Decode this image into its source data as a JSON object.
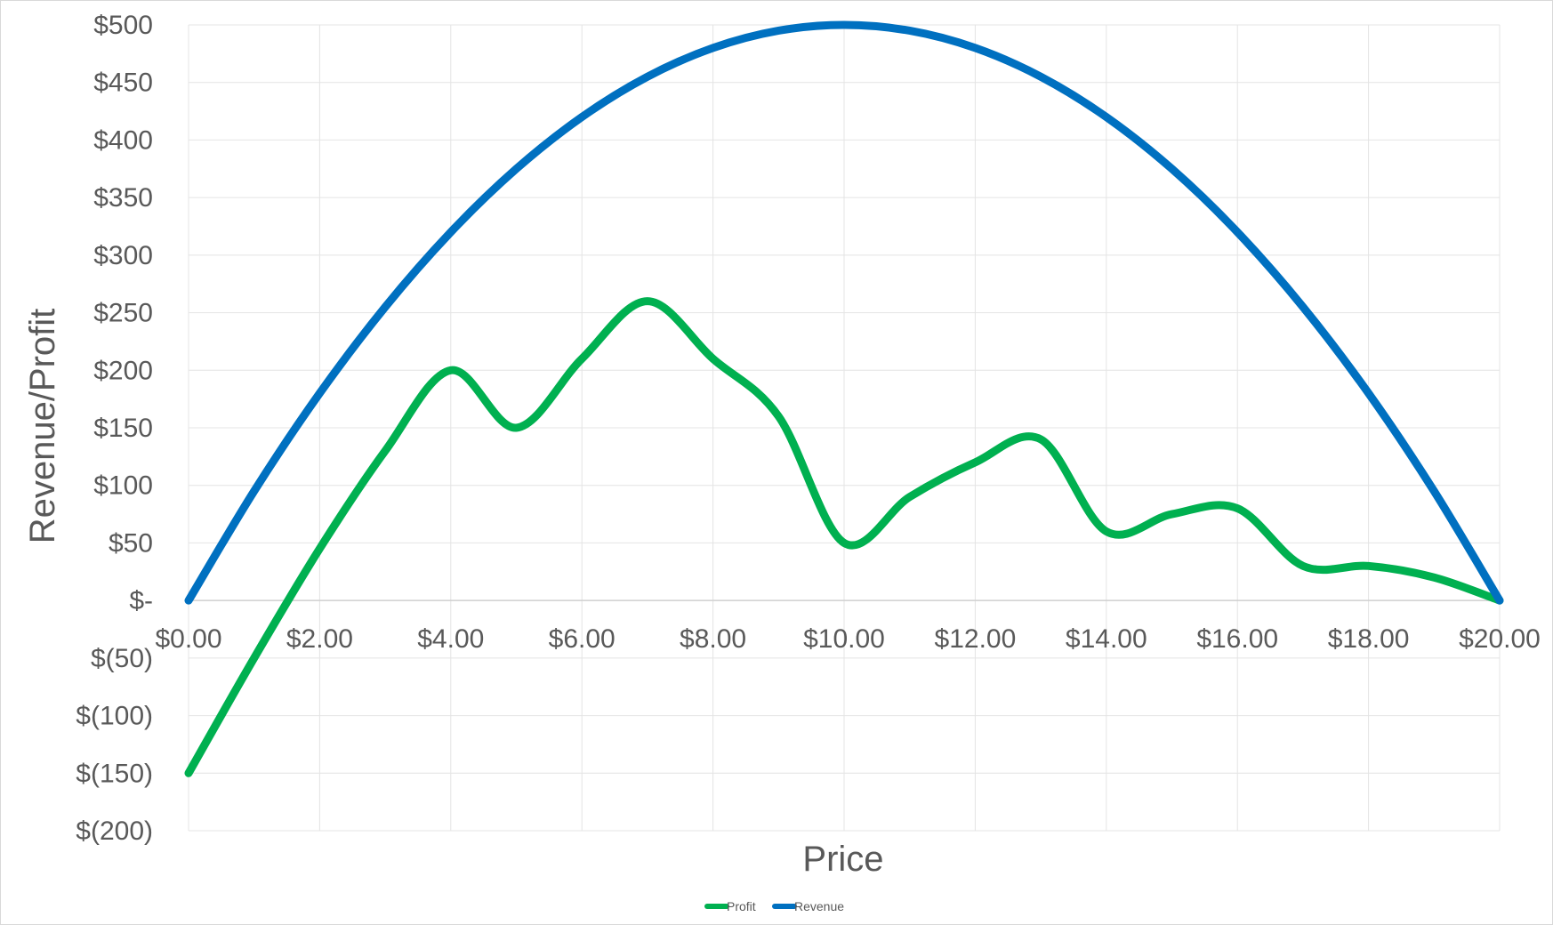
{
  "chart_data": {
    "type": "line",
    "title": "",
    "xlabel": "Price",
    "ylabel": "Revenue/Profit",
    "xlim": [
      0,
      20
    ],
    "ylim": [
      -200,
      500
    ],
    "x_tick_labels": [
      "$0.00",
      "$2.00",
      "$4.00",
      "$6.00",
      "$8.00",
      "$10.00",
      "$12.00",
      "$14.00",
      "$16.00",
      "$18.00",
      "$20.00"
    ],
    "x_tick_values": [
      0,
      2,
      4,
      6,
      8,
      10,
      12,
      14,
      16,
      18,
      20
    ],
    "y_tick_labels": [
      "$(200)",
      "$(150)",
      "$(100)",
      "$(50)",
      "$-",
      "$50",
      "$100",
      "$150",
      "$200",
      "$250",
      "$300",
      "$350",
      "$400",
      "$450",
      "$500"
    ],
    "y_tick_values": [
      -200,
      -150,
      -100,
      -50,
      0,
      50,
      100,
      150,
      200,
      250,
      300,
      350,
      400,
      450,
      500
    ],
    "grid": true,
    "legend_position": "bottom",
    "x": [
      0,
      1,
      2,
      3,
      4,
      5,
      6,
      7,
      8,
      9,
      10,
      11,
      12,
      13,
      14,
      15,
      16,
      17,
      18,
      19,
      20
    ],
    "series": [
      {
        "name": "Profit",
        "color": "#00b050",
        "values": [
          -150,
          -50,
          45,
          130,
          200,
          150,
          210,
          260,
          210,
          160,
          50,
          90,
          120,
          140,
          60,
          75,
          80,
          30,
          30,
          20,
          0
        ]
      },
      {
        "name": "Revenue",
        "color": "#0070c0",
        "values": [
          0,
          95,
          180,
          255,
          320,
          375,
          420,
          455,
          480,
          495,
          500,
          495,
          480,
          455,
          420,
          375,
          320,
          255,
          180,
          95,
          0
        ]
      }
    ]
  }
}
